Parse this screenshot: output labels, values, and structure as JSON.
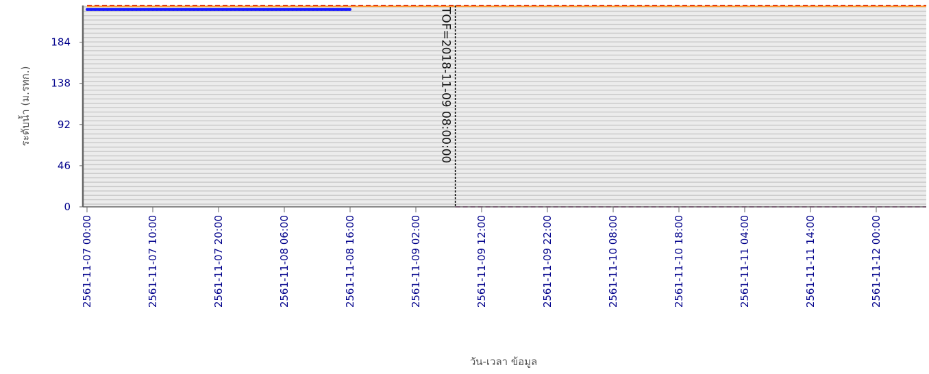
{
  "chart_data": {
    "type": "line",
    "xlabel": "วัน-เวลา ข้อมูล",
    "ylabel": "ระดับน้ำ (ม.รทก.)",
    "x_ticks": [
      "2561-11-07 00:00",
      "2561-11-07 10:00",
      "2561-11-07 20:00",
      "2561-11-08 06:00",
      "2561-11-08 16:00",
      "2561-11-09 02:00",
      "2561-11-09 12:00",
      "2561-11-09 22:00",
      "2561-11-10 08:00",
      "2561-11-10 18:00",
      "2561-11-11 04:00",
      "2561-11-11 14:00",
      "2561-11-12 00:00"
    ],
    "y_ticks": [
      0,
      46,
      92,
      138,
      184
    ],
    "ylim": [
      0,
      225
    ],
    "xlim": [
      "2561-11-07 00:00",
      "2561-11-12 11:00"
    ],
    "grid": "horizontal",
    "series": [
      {
        "values_x": [
          "2561-11-07 00:00",
          "2561-11-08 16:00"
        ],
        "values_y": [
          220.5,
          220.5
        ],
        "color": "#1a1aff",
        "style": "solid-markers"
      },
      {
        "values_x": [
          "2561-11-07 00:00",
          "2561-11-12 11:00"
        ],
        "values_y": [
          225,
          225
        ],
        "color": "#cc0000",
        "style": "dashed"
      },
      {
        "values_x": [
          "2561-11-07 00:00",
          "2561-11-12 11:00"
        ],
        "values_y": [
          224,
          224
        ],
        "color": "#ff9933",
        "style": "solid"
      },
      {
        "values_x": [
          "2561-11-09 08:00",
          "2561-11-12 11:00"
        ],
        "values_y": [
          0,
          0
        ],
        "color": "#b04a9a",
        "style": "dashed"
      }
    ],
    "markers": [
      {
        "x": "2561-11-09 08:00",
        "label": "TOF=2018-11-09 08:00:00",
        "color": "#000000"
      }
    ]
  }
}
